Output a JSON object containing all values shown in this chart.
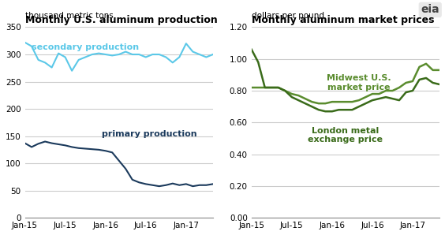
{
  "left_title": "Monthly U.S. aluminum production",
  "left_subtitle": "thousand metric tons",
  "right_title": "Monthly aluminum market prices",
  "right_subtitle": "dollars per pound",
  "xtick_labels": [
    "Jan-15",
    "Jul-15",
    "Jan-16",
    "Jul-16",
    "Jan-17"
  ],
  "left_ylim": [
    0,
    350
  ],
  "left_yticks": [
    0,
    50,
    100,
    150,
    200,
    250,
    300,
    350
  ],
  "right_ylim": [
    0.0,
    1.2
  ],
  "right_yticks": [
    0.0,
    0.2,
    0.4,
    0.6,
    0.8,
    1.0,
    1.2
  ],
  "secondary_color": "#5BC8E8",
  "primary_color": "#1B3A5C",
  "midwest_color": "#5A8C2E",
  "london_color": "#3A6B1A",
  "secondary_label": "secondary production",
  "primary_label": "primary production",
  "midwest_label": "Midwest U.S.\nmarket price",
  "london_label": "London metal\nexchange price",
  "secondary_production": [
    322,
    315,
    290,
    285,
    276,
    302,
    295,
    270,
    290,
    295,
    300,
    302,
    300,
    298,
    300,
    305,
    300,
    300,
    295,
    300,
    300,
    295,
    285,
    295,
    320,
    305,
    300,
    295,
    300
  ],
  "primary_production": [
    137,
    130,
    136,
    140,
    137,
    135,
    133,
    130,
    128,
    127,
    126,
    125,
    123,
    120,
    105,
    90,
    70,
    65,
    62,
    60,
    58,
    60,
    63,
    60,
    62,
    58,
    60,
    60,
    62
  ],
  "midwest_price": [
    0.82,
    0.82,
    0.82,
    0.82,
    0.82,
    0.8,
    0.78,
    0.77,
    0.75,
    0.73,
    0.72,
    0.72,
    0.73,
    0.73,
    0.73,
    0.73,
    0.74,
    0.76,
    0.78,
    0.78,
    0.8,
    0.8,
    0.82,
    0.85,
    0.86,
    0.95,
    0.97,
    0.93,
    0.93
  ],
  "london_price": [
    1.06,
    0.98,
    0.82,
    0.82,
    0.82,
    0.8,
    0.76,
    0.74,
    0.72,
    0.7,
    0.68,
    0.67,
    0.67,
    0.68,
    0.68,
    0.68,
    0.7,
    0.72,
    0.74,
    0.75,
    0.76,
    0.75,
    0.74,
    0.79,
    0.8,
    0.87,
    0.88,
    0.85,
    0.84
  ],
  "n_points": 29,
  "background_color": "#FFFFFF",
  "grid_color": "#CCCCCC",
  "title_fontsize": 9,
  "subtitle_fontsize": 7.5,
  "label_fontsize": 8,
  "tick_fontsize": 7.5
}
